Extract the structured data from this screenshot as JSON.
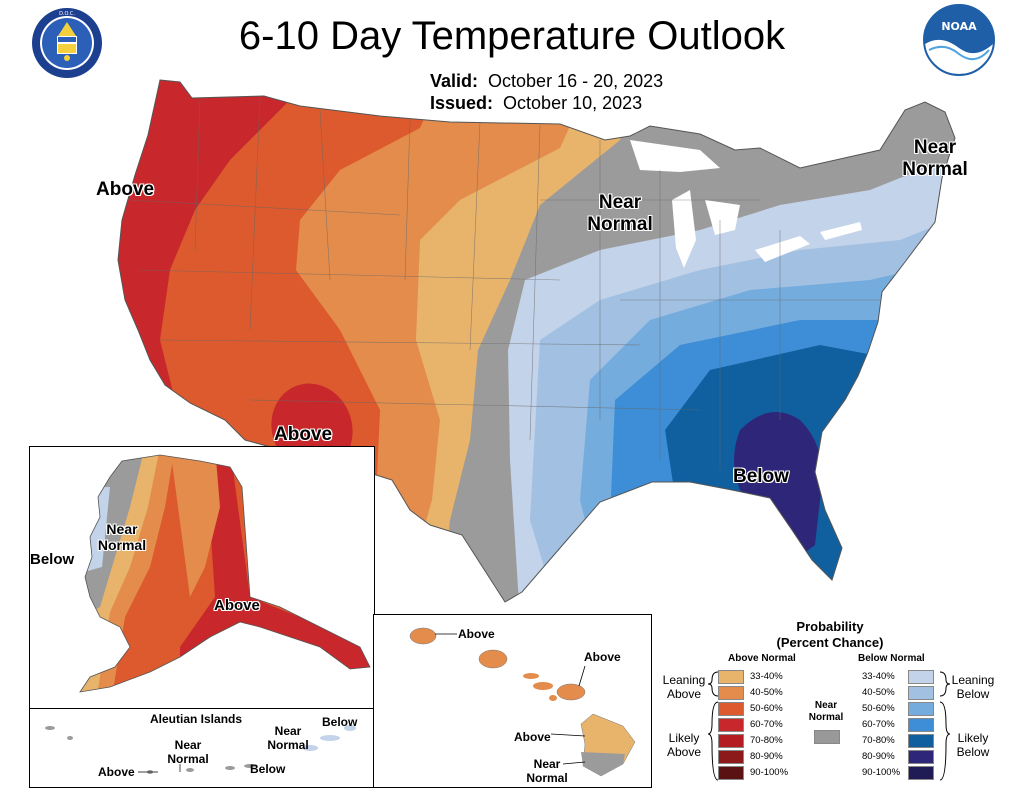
{
  "header": {
    "title": "6-10 Day Temperature Outlook",
    "valid_label": "Valid:",
    "valid_value": "October 16 - 20, 2023",
    "issued_label": "Issued:",
    "issued_value": "October 10, 2023"
  },
  "logos": {
    "left": {
      "icon": "department-of-commerce-seal",
      "text": "DEPARTMENT OF COMMERCE · UNITED STATES OF AMERICA"
    },
    "right": {
      "icon": "noaa-logo",
      "text": "NOAA"
    }
  },
  "map_labels": {
    "conus_above_west": "Above",
    "conus_above_southwest": "Above",
    "conus_near_normal_central": "Near Normal",
    "conus_near_normal_northeast": "Near Normal",
    "conus_below_southeast": "Below",
    "alaska_below": "Below",
    "alaska_near_normal": "Near Normal",
    "alaska_above": "Above",
    "aleutian_title": "Aleutian Islands",
    "aleutian_above": "Above",
    "aleutian_near_normal": "Near Normal",
    "aleutian_below_1": "Below",
    "aleutian_near_normal_2": "Near Normal",
    "aleutian_below_2": "Below",
    "hawaii_above_1": "Above",
    "hawaii_above_2": "Above",
    "hawaii_above_3": "Above",
    "hawaii_near_normal": "Near Normal"
  },
  "legend": {
    "title_line1": "Probability",
    "title_line2": "(Percent Chance)",
    "above_header": "Above Normal",
    "below_header": "Below Normal",
    "near_normal_label": "Near Normal",
    "leaning_above": "Leaning Above",
    "likely_above": "Likely Above",
    "leaning_below": "Leaning Below",
    "likely_below": "Likely Below",
    "above_bins": [
      {
        "range": "33-40%",
        "color": "#E8B46C"
      },
      {
        "range": "40-50%",
        "color": "#E48C4C"
      },
      {
        "range": "50-60%",
        "color": "#DC5A2E"
      },
      {
        "range": "60-70%",
        "color": "#C8282C"
      },
      {
        "range": "70-80%",
        "color": "#B41E22"
      },
      {
        "range": "80-90%",
        "color": "#8C1A1A"
      },
      {
        "range": "90-100%",
        "color": "#5A1212"
      }
    ],
    "below_bins": [
      {
        "range": "33-40%",
        "color": "#C3D3EA"
      },
      {
        "range": "40-50%",
        "color": "#A1C0E2"
      },
      {
        "range": "50-60%",
        "color": "#74ACDE"
      },
      {
        "range": "60-70%",
        "color": "#3D8ED6"
      },
      {
        "range": "70-80%",
        "color": "#10609F"
      },
      {
        "range": "80-90%",
        "color": "#2E2779"
      },
      {
        "range": "90-100%",
        "color": "#1E1B55"
      }
    ],
    "near_normal_color": "#999999"
  }
}
